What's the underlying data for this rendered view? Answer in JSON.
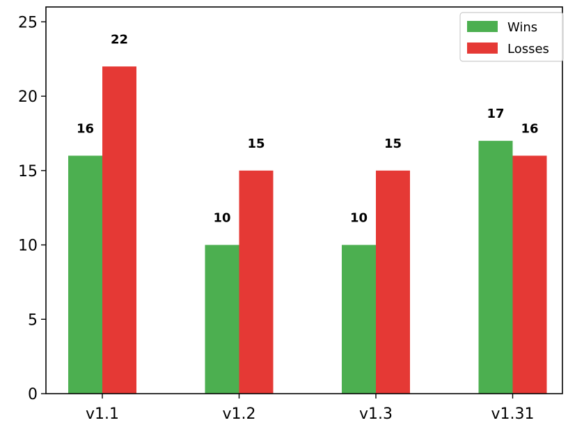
{
  "chart_data": {
    "type": "bar",
    "categories": [
      "v1.1",
      "v1.2",
      "v1.3",
      "v1.31"
    ],
    "series": [
      {
        "name": "Wins",
        "values": [
          16,
          10,
          10,
          17
        ],
        "color": "#4caf50"
      },
      {
        "name": "Losses",
        "values": [
          22,
          15,
          15,
          16
        ],
        "color": "#e53935"
      }
    ],
    "title": "",
    "xlabel": "",
    "ylabel": "",
    "ylim": [
      0,
      26
    ],
    "yticks": [
      0,
      5,
      10,
      15,
      20,
      25
    ],
    "grid": false,
    "legend_position": "top-right",
    "data_labels": true
  }
}
